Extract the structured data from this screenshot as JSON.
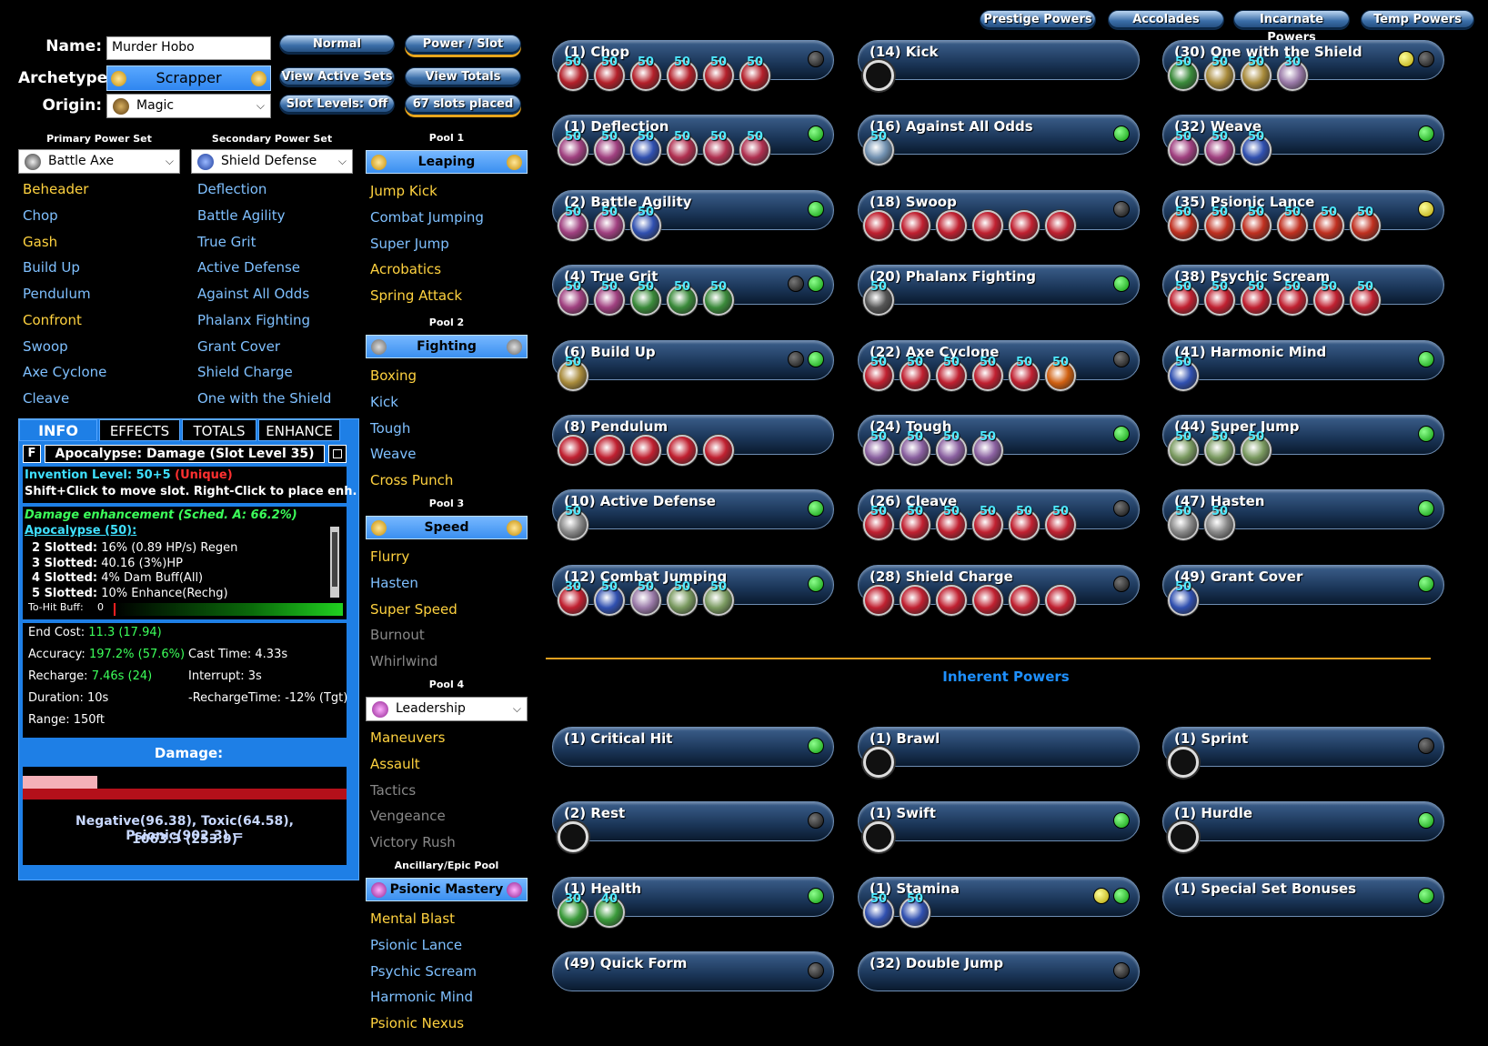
{
  "header": {
    "name_label": "Name:",
    "name_value": "Murder Hobo",
    "archetype_label": "Archetype:",
    "archetype_value": "Scrapper",
    "origin_label": "Origin:",
    "origin_value": "Magic",
    "buttons": {
      "normal": "Normal",
      "power_slot": "Power / Slot",
      "view_active_sets": "View Active Sets",
      "view_totals": "View Totals",
      "slot_levels": "Slot Levels: Off",
      "slots_placed": "67 slots placed"
    },
    "top_tabs": [
      "Prestige Powers",
      "Accolades",
      "Incarnate Powers",
      "Temp Powers"
    ]
  },
  "primary": {
    "header": "Primary Power Set",
    "selected": "Battle Axe",
    "powers": [
      {
        "n": "Beheader",
        "c": "y"
      },
      {
        "n": "Chop",
        "c": "b"
      },
      {
        "n": "Gash",
        "c": "y"
      },
      {
        "n": "Build Up",
        "c": "b"
      },
      {
        "n": "Pendulum",
        "c": "b"
      },
      {
        "n": "Confront",
        "c": "y"
      },
      {
        "n": "Swoop",
        "c": "b"
      },
      {
        "n": "Axe Cyclone",
        "c": "b"
      },
      {
        "n": "Cleave",
        "c": "b"
      }
    ]
  },
  "secondary": {
    "header": "Secondary Power Set",
    "selected": "Shield Defense",
    "powers": [
      {
        "n": "Deflection",
        "c": "b"
      },
      {
        "n": "Battle Agility",
        "c": "b"
      },
      {
        "n": "True Grit",
        "c": "b"
      },
      {
        "n": "Active Defense",
        "c": "b"
      },
      {
        "n": "Against All Odds",
        "c": "b"
      },
      {
        "n": "Phalanx Fighting",
        "c": "b"
      },
      {
        "n": "Grant Cover",
        "c": "b"
      },
      {
        "n": "Shield Charge",
        "c": "b"
      },
      {
        "n": "One with the Shield",
        "c": "b"
      }
    ]
  },
  "pools": [
    {
      "header": "Pool 1",
      "name": "Leaping",
      "powers": [
        {
          "n": "Jump Kick",
          "c": "y"
        },
        {
          "n": "Combat Jumping",
          "c": "b"
        },
        {
          "n": "Super Jump",
          "c": "b"
        },
        {
          "n": "Acrobatics",
          "c": "y"
        },
        {
          "n": "Spring Attack",
          "c": "y"
        }
      ]
    },
    {
      "header": "Pool 2",
      "name": "Fighting",
      "powers": [
        {
          "n": "Boxing",
          "c": "y"
        },
        {
          "n": "Kick",
          "c": "b"
        },
        {
          "n": "Tough",
          "c": "b"
        },
        {
          "n": "Weave",
          "c": "b"
        },
        {
          "n": "Cross Punch",
          "c": "y"
        }
      ]
    },
    {
      "header": "Pool 3",
      "name": "Speed",
      "powers": [
        {
          "n": "Flurry",
          "c": "y"
        },
        {
          "n": "Hasten",
          "c": "b"
        },
        {
          "n": "Super Speed",
          "c": "y"
        },
        {
          "n": "Burnout",
          "c": "g"
        },
        {
          "n": "Whirlwind",
          "c": "g"
        }
      ]
    },
    {
      "header": "Pool 4",
      "name": "Leadership",
      "powers": [
        {
          "n": "Maneuvers",
          "c": "y"
        },
        {
          "n": "Assault",
          "c": "y"
        },
        {
          "n": "Tactics",
          "c": "g"
        },
        {
          "n": "Vengeance",
          "c": "g"
        },
        {
          "n": "Victory Rush",
          "c": "g"
        }
      ]
    },
    {
      "header": "Ancillary/Epic Pool",
      "name": "Psionic Mastery",
      "powers": [
        {
          "n": "Mental Blast",
          "c": "y"
        },
        {
          "n": "Psionic Lance",
          "c": "b"
        },
        {
          "n": "Psychic Scream",
          "c": "b"
        },
        {
          "n": "Harmonic Mind",
          "c": "b"
        },
        {
          "n": "Psionic Nexus",
          "c": "y"
        }
      ]
    }
  ],
  "info": {
    "tabs": [
      "INFO",
      "EFFECTS",
      "TOTALS",
      "ENHANCE"
    ],
    "f": "F",
    "title": "Apocalypse: Damage (Slot Level 35)",
    "invention_label": "Invention Level: 50+5",
    "unique": "(Unique)",
    "hint": "Shift+Click to move slot. Right-Click to place enh.",
    "enh_line": "Damage enhancement (Sched. A: 66.2%)",
    "set_name": "Apocalypse (50):",
    "bonuses": [
      {
        "k": "2 Slotted:",
        "v": "16% (0.89 HP/s) Regen"
      },
      {
        "k": "3 Slotted:",
        "v": "40.16 (3%)HP"
      },
      {
        "k": "4 Slotted:",
        "v": "4% Dam Buff(All)"
      },
      {
        "k": "5 Slotted:",
        "v": "10% Enhance(Rechg)"
      }
    ],
    "tohit_label": "To-Hit Buff:",
    "tohit_value": "0",
    "end_cost_label": "End Cost:",
    "end_cost_value": "11.3 (17.94)",
    "accuracy_label": "Accuracy:",
    "accuracy_value": "197.2% (57.6%)",
    "cast_label": "Cast Time:",
    "cast_value": "4.33s",
    "recharge_label": "Recharge:",
    "recharge_value": "7.46s (24)",
    "interrupt_label": "Interrupt:",
    "interrupt_value": "3s",
    "duration_label": "Duration:",
    "duration_value": "10s",
    "rechtime_label": "-RechargeTime:",
    "rechtime_value": "-12% (Tgt)",
    "range_label": "Range:",
    "range_value": "150ft",
    "damage_label": "Damage:",
    "damage_fraction": 0.23,
    "damage_text1": "Negative(96.38), Toxic(64.58), Psionic(902.3) =",
    "damage_text2": "1063.3 (253.9)"
  },
  "inherent_label": "Inherent Powers",
  "colors": {
    "accent": "#1e7fe6",
    "gold": "#e0a020",
    "led_on": "#0a9a0a"
  },
  "slots": [
    {
      "label": "(1) Chop",
      "leds": [
        "off"
      ],
      "enh": [
        {
          "l": "50",
          "c": "#b4202a"
        },
        {
          "l": "50",
          "c": "#b4202a"
        },
        {
          "l": "50",
          "c": "#b4202a"
        },
        {
          "l": "50",
          "c": "#b4202a"
        },
        {
          "l": "50",
          "c": "#b4202a"
        },
        {
          "l": "50",
          "c": "#b4202a"
        }
      ]
    },
    {
      "label": "(14) Kick",
      "leds": [],
      "empty": true
    },
    {
      "label": "(30) One with the Shield",
      "leds": [
        "yel",
        "off"
      ],
      "enh": [
        {
          "l": "50",
          "c": "#3a8a3a"
        },
        {
          "l": "50",
          "c": "#a88a3a"
        },
        {
          "l": "50",
          "c": "#a88a3a"
        },
        {
          "l": "30",
          "c": "#9a7aa8"
        }
      ]
    },
    {
      "label": "(1) Deflection",
      "leds": [
        "on"
      ],
      "enh": [
        {
          "l": "50",
          "c": "#a04080"
        },
        {
          "l": "50",
          "c": "#a04080"
        },
        {
          "l": "50",
          "c": "#3050b0"
        },
        {
          "l": "50",
          "c": "#b03050"
        },
        {
          "l": "50",
          "c": "#b03050"
        },
        {
          "l": "50",
          "c": "#b03050"
        }
      ]
    },
    {
      "label": "(16) Against All Odds",
      "leds": [
        "on"
      ],
      "enh": [
        {
          "l": "50",
          "c": "#7090b0"
        }
      ]
    },
    {
      "label": "(32) Weave",
      "leds": [
        "on"
      ],
      "enh": [
        {
          "l": "50",
          "c": "#a04080"
        },
        {
          "l": "50",
          "c": "#a04080"
        },
        {
          "l": "50",
          "c": "#3050b0"
        }
      ]
    },
    {
      "label": "(2) Battle Agility",
      "leds": [
        "on"
      ],
      "enh": [
        {
          "l": "50",
          "c": "#a04080"
        },
        {
          "l": "50",
          "c": "#a04080"
        },
        {
          "l": "50",
          "c": "#3050b0"
        }
      ]
    },
    {
      "label": "(18) Swoop",
      "leds": [
        "off"
      ],
      "enh": [
        {
          "l": "",
          "c": "#c02030"
        },
        {
          "l": "",
          "c": "#c02030"
        },
        {
          "l": "",
          "c": "#c02030"
        },
        {
          "l": "",
          "c": "#c02030"
        },
        {
          "l": "",
          "c": "#c02030"
        },
        {
          "l": "",
          "c": "#c02030"
        }
      ]
    },
    {
      "label": "(35) Psionic Lance",
      "leds": [
        "yel"
      ],
      "enh": [
        {
          "l": "50",
          "c": "#c03020"
        },
        {
          "l": "50",
          "c": "#c03020"
        },
        {
          "l": "50",
          "c": "#c03020"
        },
        {
          "l": "50",
          "c": "#c03020"
        },
        {
          "l": "50",
          "c": "#c03020"
        },
        {
          "l": "50",
          "c": "#c03020"
        }
      ]
    },
    {
      "label": "(4) True Grit",
      "leds": [
        "off",
        "on"
      ],
      "enh": [
        {
          "l": "50",
          "c": "#a04080"
        },
        {
          "l": "50",
          "c": "#a04080"
        },
        {
          "l": "50",
          "c": "#3a8a3a"
        },
        {
          "l": "50",
          "c": "#3a8a3a"
        },
        {
          "l": "50",
          "c": "#3a8a3a"
        }
      ]
    },
    {
      "label": "(20) Phalanx Fighting",
      "leds": [
        "on"
      ],
      "enh": [
        {
          "l": "50",
          "c": "#555"
        }
      ]
    },
    {
      "label": "(38) Psychic Scream",
      "leds": [],
      "enh": [
        {
          "l": "50",
          "c": "#c02030"
        },
        {
          "l": "50",
          "c": "#c02030"
        },
        {
          "l": "50",
          "c": "#c02030"
        },
        {
          "l": "50",
          "c": "#c02030"
        },
        {
          "l": "50",
          "c": "#c02030"
        },
        {
          "l": "50",
          "c": "#c02030"
        }
      ]
    },
    {
      "label": "(6) Build Up",
      "leds": [
        "off",
        "on"
      ],
      "enh": [
        {
          "l": "50",
          "c": "#a88a3a"
        }
      ]
    },
    {
      "label": "(22) Axe Cyclone",
      "leds": [
        "off"
      ],
      "enh": [
        {
          "l": "50",
          "c": "#c02030"
        },
        {
          "l": "50",
          "c": "#c02030"
        },
        {
          "l": "50",
          "c": "#c02030"
        },
        {
          "l": "50",
          "c": "#c02030"
        },
        {
          "l": "50",
          "c": "#c02030"
        },
        {
          "l": "50",
          "c": "#d06010"
        }
      ]
    },
    {
      "label": "(41) Harmonic Mind",
      "leds": [
        "on"
      ],
      "enh": [
        {
          "l": "50",
          "c": "#3050b0"
        }
      ]
    },
    {
      "label": "(8) Pendulum",
      "leds": [],
      "enh": [
        {
          "l": "",
          "c": "#c02030"
        },
        {
          "l": "",
          "c": "#c02030"
        },
        {
          "l": "",
          "c": "#c02030"
        },
        {
          "l": "",
          "c": "#c02030"
        },
        {
          "l": "",
          "c": "#c02030"
        }
      ]
    },
    {
      "label": "(24) Tough",
      "leds": [
        "on"
      ],
      "enh": [
        {
          "l": "50",
          "c": "#8a60a0"
        },
        {
          "l": "50",
          "c": "#8a60a0"
        },
        {
          "l": "50",
          "c": "#8a60a0"
        },
        {
          "l": "50",
          "c": "#8a60a0"
        }
      ]
    },
    {
      "label": "(44) Super Jump",
      "leds": [
        "on"
      ],
      "enh": [
        {
          "l": "50",
          "c": "#7a9a60"
        },
        {
          "l": "50",
          "c": "#7a9a60"
        },
        {
          "l": "50",
          "c": "#7a9a60"
        }
      ]
    },
    {
      "label": "(10) Active Defense",
      "leds": [
        "on"
      ],
      "enh": [
        {
          "l": "50",
          "c": "#888"
        }
      ]
    },
    {
      "label": "(26) Cleave",
      "leds": [
        "off"
      ],
      "enh": [
        {
          "l": "50",
          "c": "#c02030"
        },
        {
          "l": "50",
          "c": "#c02030"
        },
        {
          "l": "50",
          "c": "#c02030"
        },
        {
          "l": "50",
          "c": "#c02030"
        },
        {
          "l": "50",
          "c": "#c02030"
        },
        {
          "l": "50",
          "c": "#c02030"
        }
      ]
    },
    {
      "label": "(47) Hasten",
      "leds": [
        "on"
      ],
      "enh": [
        {
          "l": "50",
          "c": "#888"
        },
        {
          "l": "50",
          "c": "#888"
        }
      ]
    },
    {
      "label": "(12) Combat Jumping",
      "leds": [
        "on"
      ],
      "enh": [
        {
          "l": "30",
          "c": "#c02030"
        },
        {
          "l": "50",
          "c": "#3050b0"
        },
        {
          "l": "50",
          "c": "#9a7aa8"
        },
        {
          "l": "50",
          "c": "#7a9a60"
        },
        {
          "l": "50",
          "c": "#7a9a60"
        }
      ]
    },
    {
      "label": "(28) Shield Charge",
      "leds": [
        "off"
      ],
      "enh": [
        {
          "l": "",
          "c": "#c02030"
        },
        {
          "l": "",
          "c": "#c02030"
        },
        {
          "l": "",
          "c": "#c02030"
        },
        {
          "l": "",
          "c": "#c02030"
        },
        {
          "l": "",
          "c": "#c02030"
        },
        {
          "l": "",
          "c": "#c02030"
        }
      ]
    },
    {
      "label": "(49) Grant Cover",
      "leds": [
        "on"
      ],
      "enh": [
        {
          "l": "50",
          "c": "#3050b0"
        }
      ]
    }
  ],
  "inherent": [
    {
      "label": "(1) Critical Hit",
      "leds": [
        "on"
      ]
    },
    {
      "label": "(1) Brawl",
      "leds": [],
      "empty": true
    },
    {
      "label": "(1) Sprint",
      "leds": [
        "off"
      ],
      "empty": true
    },
    {
      "label": "(2) Rest",
      "leds": [
        "off"
      ],
      "empty": true
    },
    {
      "label": "(1) Swift",
      "leds": [
        "on"
      ],
      "empty": true
    },
    {
      "label": "(1) Hurdle",
      "leds": [
        "on"
      ],
      "empty": true
    },
    {
      "label": "(1) Health",
      "leds": [
        "on"
      ],
      "enh": [
        {
          "l": "30",
          "c": "#3a9a3a"
        },
        {
          "l": "40",
          "c": "#3a9a3a"
        }
      ]
    },
    {
      "label": "(1) Stamina",
      "leds": [
        "yel",
        "on"
      ],
      "enh": [
        {
          "l": "50",
          "c": "#3050b0"
        },
        {
          "l": "50",
          "c": "#3050b0"
        }
      ]
    },
    {
      "label": "(1) Special Set Bonuses",
      "leds": [
        "on"
      ]
    },
    {
      "label": "(49) Quick Form",
      "leds": [
        "off"
      ]
    },
    {
      "label": "(32) Double Jump",
      "leds": [
        "off"
      ]
    }
  ]
}
